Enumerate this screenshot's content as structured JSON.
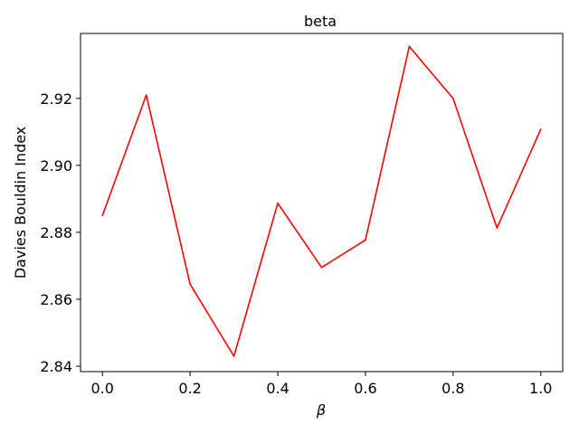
{
  "chart_data": {
    "type": "line",
    "title": "beta",
    "xlabel": "β",
    "ylabel": "Davies Bouldin Index",
    "xlim": [
      -0.05,
      1.05
    ],
    "ylim": [
      2.8384,
      2.9394
    ],
    "xticks": [
      0.0,
      0.2,
      0.4,
      0.6,
      0.8,
      1.0
    ],
    "xtick_labels": [
      "0.0",
      "0.2",
      "0.4",
      "0.6",
      "0.8",
      "1.0"
    ],
    "yticks": [
      2.84,
      2.86,
      2.88,
      2.9,
      2.92
    ],
    "ytick_labels": [
      "2.84",
      "2.86",
      "2.88",
      "2.90",
      "2.92"
    ],
    "grid": false,
    "series": [
      {
        "color": "#ff0000",
        "x": [
          0.0,
          0.1,
          0.2,
          0.3,
          0.4,
          0.5,
          0.6,
          0.7,
          0.8,
          0.9,
          1.0
        ],
        "y": [
          2.885,
          2.921,
          2.8645,
          2.843,
          2.8887,
          2.8695,
          2.8777,
          2.9355,
          2.92,
          2.8813,
          2.9108
        ]
      }
    ]
  }
}
